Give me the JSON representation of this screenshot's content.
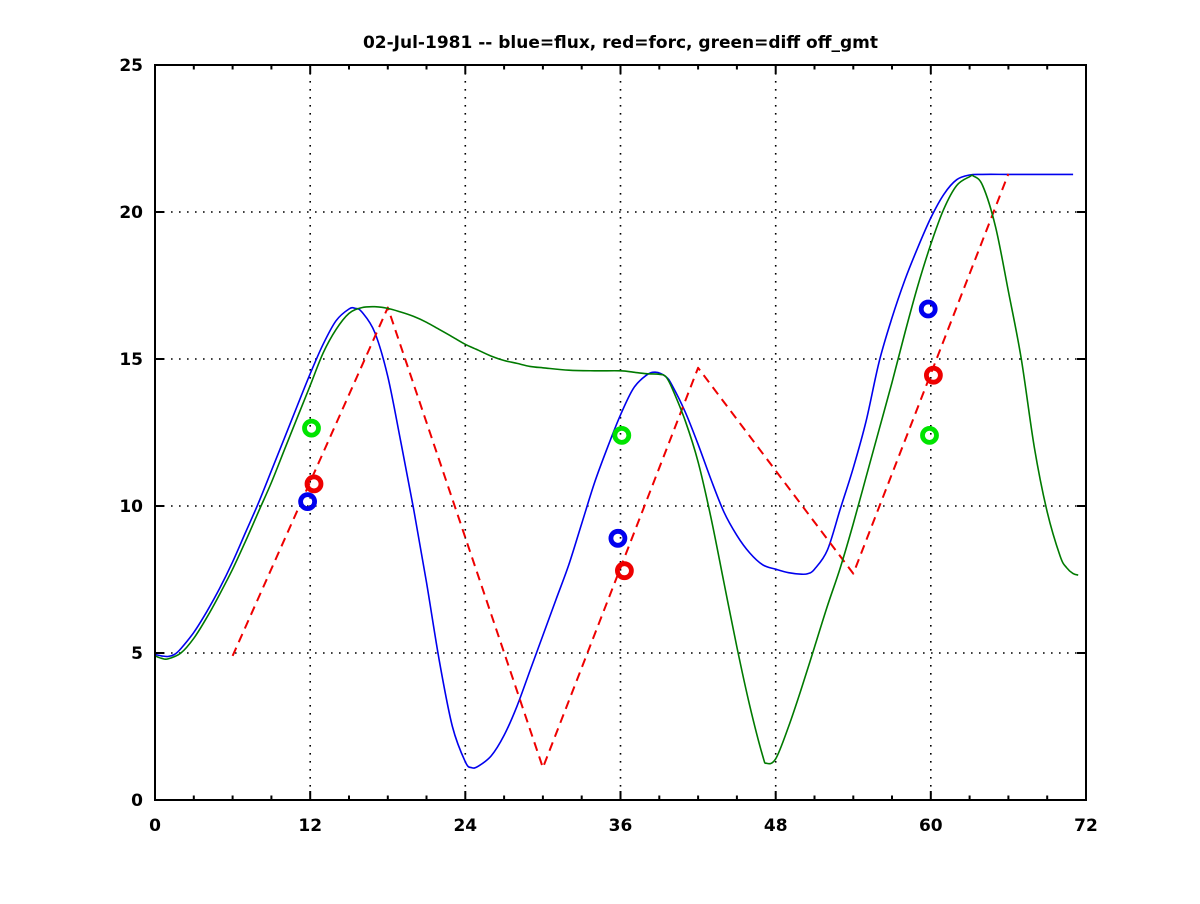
{
  "title": "02-Jul-1981 -- blue=flux, red=forc, green=diff off_gmt",
  "chart_data": {
    "type": "line",
    "title": "02-Jul-1981 -- blue=flux, red=forc, green=diff off_gmt",
    "xlabel": "",
    "ylabel": "",
    "xlim": [
      0,
      72
    ],
    "ylim": [
      0,
      25
    ],
    "xticks": [
      0,
      12,
      24,
      36,
      48,
      60,
      72
    ],
    "yticks": [
      0,
      5,
      10,
      15,
      20,
      25
    ],
    "x_minor_step": 3,
    "grid_x": [
      12,
      24,
      36,
      48,
      60
    ],
    "grid_y": [
      5,
      10,
      15,
      20
    ],
    "grid_style": "dotted-black",
    "legend_position": "encoded-in-title",
    "colors": {
      "flux": "#0000ee",
      "forc": "#ee0000",
      "diff": "#007a00",
      "diff_marker": "#00e400"
    },
    "series": [
      {
        "name": "flux",
        "color": "#0000ee",
        "style": "solid",
        "x": [
          0,
          0.5,
          1,
          1.5,
          2,
          3,
          4,
          5,
          6,
          7,
          8,
          9,
          10,
          11,
          12,
          13,
          14,
          15,
          15.5,
          16,
          17,
          18,
          19,
          20,
          21,
          22,
          23,
          24,
          24.5,
          25,
          26,
          27,
          28,
          29,
          30,
          31,
          32,
          33,
          34,
          35,
          36,
          37,
          38,
          38.7,
          39.5,
          40,
          41,
          42,
          43,
          44,
          45,
          46,
          47,
          48,
          49,
          50,
          50.5,
          51,
          52,
          53,
          54,
          55,
          56,
          57,
          58,
          59,
          60,
          61,
          62,
          63,
          64,
          66,
          68,
          70,
          71
        ],
        "y": [
          4.95,
          4.9,
          4.88,
          4.95,
          5.15,
          5.7,
          6.4,
          7.2,
          8.1,
          9.1,
          10.1,
          11.2,
          12.3,
          13.4,
          14.5,
          15.5,
          16.3,
          16.7,
          16.72,
          16.6,
          15.9,
          14.4,
          12.2,
          9.9,
          7.4,
          4.7,
          2.5,
          1.3,
          1.1,
          1.15,
          1.5,
          2.2,
          3.2,
          4.4,
          5.6,
          6.8,
          8.0,
          9.4,
          10.8,
          12.0,
          13.1,
          14.0,
          14.45,
          14.55,
          14.4,
          14.1,
          13.2,
          12.1,
          10.9,
          9.8,
          9.0,
          8.4,
          8.0,
          7.85,
          7.73,
          7.68,
          7.7,
          7.85,
          8.5,
          9.9,
          11.3,
          12.9,
          14.9,
          16.4,
          17.7,
          18.8,
          19.8,
          20.6,
          21.1,
          21.26,
          21.28,
          21.28,
          21.28,
          21.28,
          21.28
        ]
      },
      {
        "name": "forc",
        "color": "#ee0000",
        "style": "dashed",
        "x": [
          6,
          18,
          30,
          42,
          54,
          66
        ],
        "y": [
          4.9,
          16.75,
          1.1,
          14.7,
          7.7,
          21.3
        ]
      },
      {
        "name": "diff",
        "color": "#007a00",
        "style": "solid",
        "x": [
          0,
          0.5,
          1,
          2,
          3,
          4,
          5,
          6,
          7,
          8,
          9,
          10,
          11,
          12,
          13,
          14,
          15,
          16,
          17,
          18,
          19,
          20,
          21,
          22,
          23,
          24,
          25,
          26,
          27,
          28,
          29,
          30,
          32,
          34,
          36,
          37,
          38,
          39,
          39.5,
          40,
          41,
          42,
          43,
          44,
          45,
          46,
          47,
          47.3,
          48,
          49,
          50,
          51,
          52,
          53,
          54,
          55,
          56,
          57,
          58,
          59,
          60,
          61,
          62,
          63,
          63.3,
          64,
          65,
          66,
          67,
          68,
          69,
          70,
          70.5,
          71,
          71.4
        ],
        "y": [
          4.9,
          4.82,
          4.8,
          5.0,
          5.5,
          6.2,
          7.0,
          7.85,
          8.8,
          9.8,
          10.8,
          11.9,
          13.0,
          14.1,
          15.2,
          16.0,
          16.55,
          16.75,
          16.78,
          16.72,
          16.6,
          16.45,
          16.25,
          16.0,
          15.75,
          15.5,
          15.3,
          15.1,
          14.95,
          14.85,
          14.75,
          14.7,
          14.62,
          14.6,
          14.6,
          14.55,
          14.5,
          14.48,
          14.4,
          14.0,
          12.9,
          11.5,
          9.6,
          7.4,
          5.2,
          3.2,
          1.5,
          1.25,
          1.4,
          2.5,
          3.8,
          5.2,
          6.6,
          7.9,
          9.4,
          11.0,
          12.6,
          14.2,
          15.9,
          17.5,
          18.9,
          20.1,
          20.9,
          21.2,
          21.22,
          20.9,
          19.5,
          17.3,
          15.0,
          12.0,
          9.8,
          8.3,
          7.9,
          7.7,
          7.65
        ]
      }
    ],
    "markers": [
      {
        "name": "flux-obs",
        "color": "#0000ee",
        "shape": "open-circle",
        "points": [
          [
            11.8,
            10.15
          ],
          [
            35.8,
            8.9
          ],
          [
            59.8,
            16.7
          ]
        ]
      },
      {
        "name": "forc-obs",
        "color": "#ee0000",
        "shape": "open-circle",
        "points": [
          [
            12.3,
            10.75
          ],
          [
            36.3,
            7.8
          ],
          [
            60.2,
            14.45
          ]
        ]
      },
      {
        "name": "diff-obs",
        "color": "#00e400",
        "shape": "open-circle",
        "points": [
          [
            12.1,
            12.65
          ],
          [
            36.1,
            12.4
          ],
          [
            59.9,
            12.4
          ]
        ]
      }
    ]
  }
}
